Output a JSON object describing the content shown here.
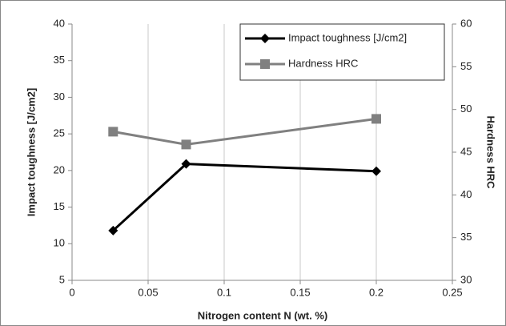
{
  "chart_data": {
    "type": "line",
    "x_label": "Nitrogen content N (wt. %)",
    "y_label": "Impact toughness [J/cm2]",
    "y2_label": "Hardness HRC",
    "series": [
      {
        "name": "Impact toughness [J/cm2]",
        "color": "#000000",
        "marker": "diamond",
        "x": [
          0.027,
          0.075,
          0.2
        ],
        "values": [
          11.8,
          20.9,
          19.9
        ]
      },
      {
        "name": "Hardness HRC",
        "color": "#808080",
        "marker": "square",
        "axis": "y2",
        "x": [
          0.027,
          0.075,
          0.2
        ],
        "values": [
          47.4,
          45.9,
          48.9
        ]
      }
    ],
    "xlim": [
      0,
      0.25
    ],
    "xticks": [
      0,
      0.05,
      0.1,
      0.15,
      0.2,
      0.25
    ],
    "ylim": [
      5,
      40
    ],
    "yticks": [
      5,
      10,
      15,
      20,
      25,
      30,
      35,
      40
    ],
    "y2lim": [
      30,
      60
    ],
    "y2ticks": [
      30,
      35,
      40,
      45,
      50,
      55,
      60
    ],
    "grid": true,
    "legend": "top-right"
  }
}
